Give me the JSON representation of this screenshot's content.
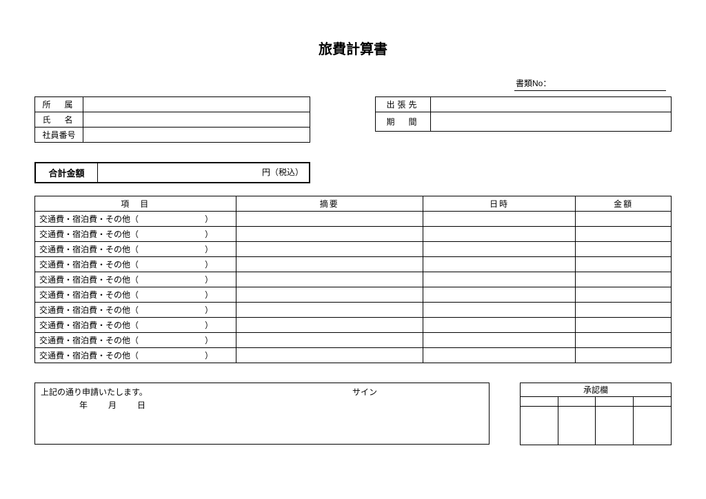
{
  "title": "旅費計算書",
  "doc_no_label": "書類No：",
  "doc_no_value": "",
  "info_left": {
    "dept_label": "所　属",
    "dept_value": "",
    "name_label": "氏　名",
    "name_value": "",
    "empno_label": "社員番号",
    "empno_value": ""
  },
  "info_right": {
    "dest_label": "出張先",
    "dest_value": "",
    "period_label": "期　間",
    "period_value": ""
  },
  "total": {
    "label": "合計金額",
    "suffix": "円（税込）",
    "value": ""
  },
  "detail": {
    "columns": {
      "item": "項　目",
      "desc": "摘要",
      "date": "日時",
      "amount": "金額"
    },
    "row_item_text": "交通費・宿泊費・その他（　　　　　　　　）",
    "row_count": 10
  },
  "sign": {
    "declaration": "上記の通り申請いたします。",
    "date_text": "年　　月　　日",
    "sign_label": "サイン"
  },
  "approval": {
    "header": "承認欄",
    "cols": 4
  },
  "style": {
    "background_color": "#ffffff",
    "text_color": "#000000",
    "border_color": "#000000",
    "title_fontsize": 20,
    "body_fontsize": 12
  }
}
